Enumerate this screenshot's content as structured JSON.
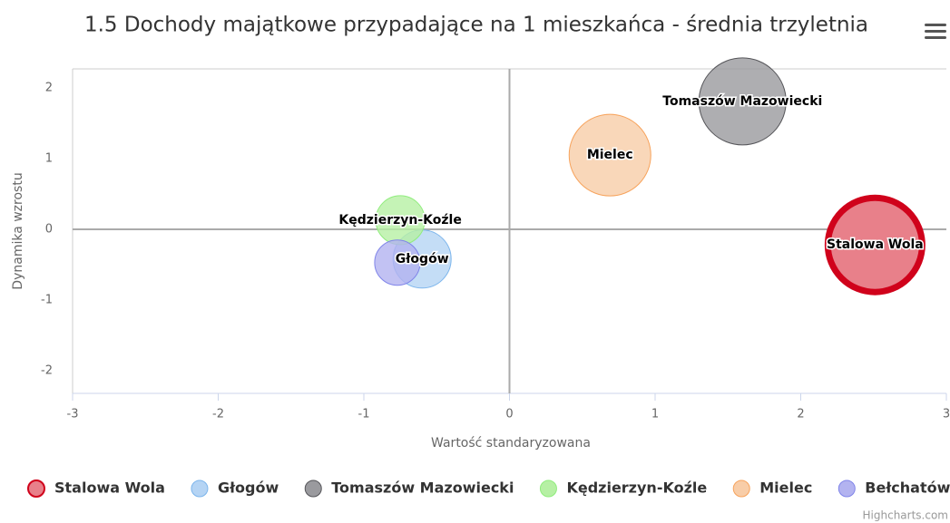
{
  "chart_data": {
    "type": "bubble",
    "title": "1.5 Dochody majątkowe przypadające na 1 mieszkańca - średnia trzyletnia",
    "x_label": "Wartość standaryzowana",
    "y_label": "Dynamika wzrostu",
    "xlim": [
      -3,
      3
    ],
    "xticks": [
      -3,
      -2,
      -1,
      0,
      1,
      2,
      3
    ],
    "ylim": [
      -2.32,
      2.27
    ],
    "yticks": [
      -2,
      -1,
      0,
      1,
      2
    ],
    "x_plot_line": 0,
    "y_plot_line": 0,
    "legend": "bottom",
    "credits": "Highcharts.com",
    "series": [
      {
        "name": "Stalowa Wola",
        "color": "#e8808a",
        "stroke": "#d0021b",
        "x": [
          2.51
        ],
        "values": [
          -0.22
        ],
        "sizes": [
          52
        ],
        "data_label": true
      },
      {
        "name": "Głogów",
        "color": "#b5d4f4",
        "stroke": "#7cb5ec",
        "x": [
          -0.6
        ],
        "values": [
          -0.42
        ],
        "sizes": [
          32
        ],
        "data_label": true
      },
      {
        "name": "Tomaszów Mazowiecki",
        "color": "#9a9a9e",
        "stroke": "#555559",
        "x": [
          1.6
        ],
        "values": [
          1.81
        ],
        "sizes": [
          48
        ],
        "data_label": true
      },
      {
        "name": "Kędzierzyn-Koźle",
        "color": "#b6f0a4",
        "stroke": "#90ed7d",
        "x": [
          -0.75
        ],
        "values": [
          0.13
        ],
        "sizes": [
          27
        ],
        "data_label": true
      },
      {
        "name": "Mielec",
        "color": "#f8cda8",
        "stroke": "#f7a35c",
        "x": [
          0.69
        ],
        "values": [
          1.05
        ],
        "sizes": [
          45
        ],
        "data_label": true
      },
      {
        "name": "Bełchatów",
        "color": "#b3b3f0",
        "stroke": "#8085e9",
        "x": [
          -0.77
        ],
        "values": [
          -0.47
        ],
        "sizes": [
          25
        ],
        "data_label": false
      }
    ]
  }
}
